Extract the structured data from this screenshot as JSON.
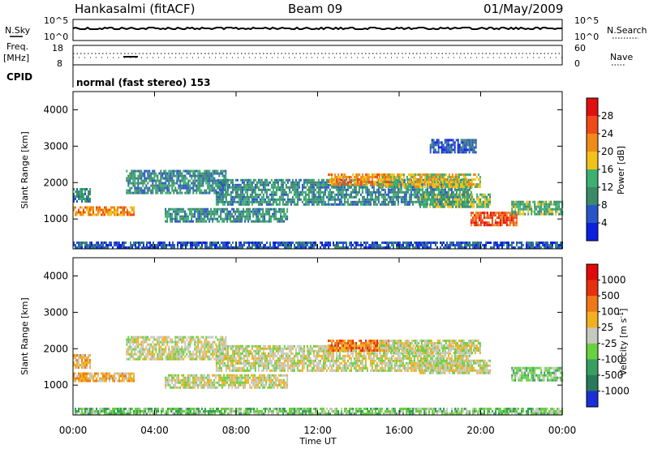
{
  "header": {
    "station": "Hankasalmi (fitACF)",
    "beam": "Beam 09",
    "date": "01/May/2009"
  },
  "aux_panels": {
    "nsky_label": "N.Sky",
    "nsky_ticks": [
      "10^5",
      "10^0"
    ],
    "nsearch_label": "N.Search",
    "nsearch_ticks": [
      "10^5",
      "10^0"
    ],
    "freq_label_1": "Freq.",
    "freq_label_2": "[MHz]",
    "freq_ticks": [
      "18",
      "8"
    ],
    "nave_label": "Nave",
    "nave_ticks": [
      "60",
      "0"
    ],
    "cpid_label": "CPID",
    "cpid_text": "normal (fast stereo) 153"
  },
  "chart_data": [
    {
      "type": "heatmap",
      "name": "power",
      "ylabel": "Slant Range [km]",
      "yticks": [
        "1000",
        "2000",
        "3000",
        "4000"
      ],
      "ylim": [
        180,
        4500
      ],
      "xlim": [
        0,
        24
      ],
      "xtick_hours": [
        0,
        4,
        8,
        12,
        16,
        20,
        24
      ],
      "colorbar": {
        "label": "Power [dB]",
        "ticks": [
          "4",
          "8",
          "12",
          "16",
          "20",
          "24",
          "28"
        ],
        "colors": [
          "#0a1fe0",
          "#2a55c8",
          "#3a8a6a",
          "#3bb070",
          "#f2c21a",
          "#f08a18",
          "#f04a18",
          "#e01010"
        ]
      },
      "bands": [
        {
          "t0": 0.0,
          "t1": 3.0,
          "r0": 1100,
          "r1": 1350,
          "level": 5
        },
        {
          "t0": 0.0,
          "t1": 0.8,
          "r0": 1500,
          "r1": 1850,
          "level": 2
        },
        {
          "t0": 2.6,
          "t1": 7.5,
          "r0": 1700,
          "r1": 2350,
          "level": 2
        },
        {
          "t0": 7.0,
          "t1": 19.5,
          "r0": 1400,
          "r1": 2100,
          "level": 2
        },
        {
          "t0": 12.5,
          "t1": 15.5,
          "r0": 1950,
          "r1": 2250,
          "level": 5
        },
        {
          "t0": 15.0,
          "t1": 20.0,
          "r0": 1850,
          "r1": 2250,
          "level": 4
        },
        {
          "t0": 17.0,
          "t1": 20.5,
          "r0": 1300,
          "r1": 1700,
          "level": 3
        },
        {
          "t0": 19.5,
          "t1": 21.8,
          "r0": 850,
          "r1": 1200,
          "level": 6
        },
        {
          "t0": 21.5,
          "t1": 24.0,
          "r0": 1100,
          "r1": 1500,
          "level": 3
        },
        {
          "t0": 4.5,
          "t1": 10.5,
          "r0": 950,
          "r1": 1300,
          "level": 2
        },
        {
          "t0": 17.5,
          "t1": 19.8,
          "r0": 2850,
          "r1": 3200,
          "level": 1
        },
        {
          "t0": 0.0,
          "t1": 24.0,
          "r0": 180,
          "r1": 380,
          "level": 1
        }
      ]
    },
    {
      "type": "heatmap",
      "name": "velocity",
      "ylabel": "Slant Range [km]",
      "yticks": [
        "1000",
        "2000",
        "3000",
        "4000"
      ],
      "ylim": [
        180,
        4500
      ],
      "xlim": [
        0,
        24
      ],
      "xlabel": "Time UT",
      "xtick_labels": [
        "00:00",
        "04:00",
        "08:00",
        "12:00",
        "16:00",
        "20:00",
        "00:00"
      ],
      "xtick_hours": [
        0,
        4,
        8,
        12,
        16,
        20,
        24
      ],
      "colorbar": {
        "label": "Velocity [m s",
        "label_sup": "-1",
        "label_end": "]",
        "ticks": [
          "1000",
          "500",
          "100",
          "25",
          "-25",
          "-100",
          "-500",
          "-1000"
        ],
        "colors": [
          "#1a2fd8",
          "#2a7a5a",
          "#36a060",
          "#6ad040",
          "#c8c8c0",
          "#f2b020",
          "#f07818",
          "#e83010",
          "#e00a0a"
        ]
      },
      "bands": [
        {
          "t0": 0.0,
          "t1": 3.0,
          "r0": 1100,
          "r1": 1350,
          "level": 5
        },
        {
          "t0": 0.0,
          "t1": 0.8,
          "r0": 1500,
          "r1": 1850,
          "level": 5
        },
        {
          "t0": 2.6,
          "t1": 7.5,
          "r0": 1700,
          "r1": 2350,
          "level": 4
        },
        {
          "t0": 7.0,
          "t1": 19.5,
          "r0": 1400,
          "r1": 2100,
          "level": 4
        },
        {
          "t0": 12.5,
          "t1": 15.5,
          "r0": 1950,
          "r1": 2250,
          "level": 6
        },
        {
          "t0": 15.0,
          "t1": 20.0,
          "r0": 1850,
          "r1": 2250,
          "level": 4
        },
        {
          "t0": 17.0,
          "t1": 20.5,
          "r0": 1300,
          "r1": 1700,
          "level": 4
        },
        {
          "t0": 21.5,
          "t1": 24.0,
          "r0": 1100,
          "r1": 1500,
          "level": 3
        },
        {
          "t0": 4.5,
          "t1": 10.5,
          "r0": 950,
          "r1": 1300,
          "level": 4
        },
        {
          "t0": 0.0,
          "t1": 24.0,
          "r0": 180,
          "r1": 380,
          "level": 3
        }
      ]
    }
  ]
}
